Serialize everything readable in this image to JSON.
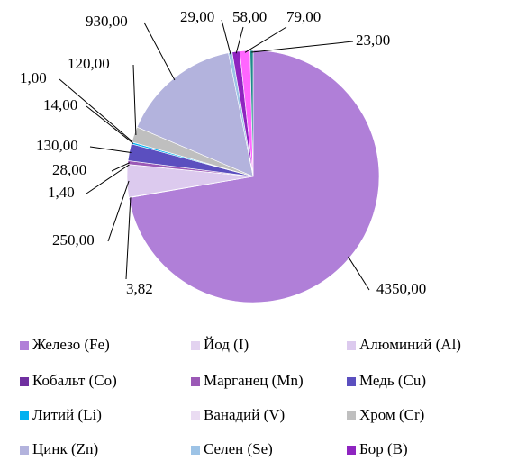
{
  "chart_data": {
    "type": "pie",
    "categories": [
      "Железо (Fe)",
      "Йод (I)",
      "Алюминий (Al)",
      "Кобальт (Co)",
      "Марганец (Mn)",
      "Медь (Cu)",
      "Литий (Li)",
      "Ванадий (V)",
      "Хром (Cr)",
      "Цинк (Zn)",
      "Селен (Se)",
      "Бор (B)",
      null,
      null
    ],
    "values": [
      4350,
      3.82,
      250,
      1.4,
      28,
      130,
      14,
      1,
      120,
      930,
      29,
      58,
      79,
      23
    ],
    "value_labels": [
      "4350,00",
      "3,82",
      "250,00",
      "1,40",
      "28,00",
      "130,00",
      "14,00",
      "1,00",
      "120,00",
      "930,00",
      "29,00",
      "58,00",
      "79,00",
      "23,00"
    ],
    "colors": [
      "#b07fd8",
      "#e3d3f0",
      "#dccaee",
      "#7030a0",
      "#9b59b6",
      "#5b4fbf",
      "#00b0f0",
      "#eadcf2",
      "#bfbfbf",
      "#b3b3dd",
      "#9dc3e6",
      "#8e24c0",
      "#ff66ff",
      "#1f8a8a"
    ]
  }
}
